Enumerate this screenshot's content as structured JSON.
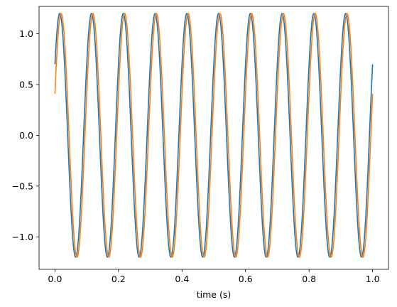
{
  "chart_data": {
    "type": "line",
    "title": "",
    "xlabel": "time (s)",
    "ylabel": "",
    "xlim": [
      -0.05,
      1.05
    ],
    "ylim": [
      -1.32,
      1.27
    ],
    "grid": false,
    "legend": "none",
    "x_ticks": [
      0.0,
      0.2,
      0.4,
      0.6,
      0.8,
      1.0
    ],
    "x_tick_labels": [
      "0.0",
      "0.2",
      "0.4",
      "0.6",
      "0.8",
      "1.0"
    ],
    "y_ticks": [
      -1.0,
      -0.5,
      0.0,
      0.5,
      1.0
    ],
    "y_tick_labels": [
      "−1.0",
      "−0.5",
      "0.0",
      "0.5",
      "1.0"
    ],
    "series": [
      {
        "color": "#1f77b4",
        "function": "1.2*sin(2*pi*10*t + 0.63)",
        "x_range": [
          0,
          1
        ],
        "y_start": 0.7,
        "y_end": 0.7
      },
      {
        "color": "#ff7f0e",
        "function": "1.2*sin(2*pi*10*t + 0.35)",
        "x_range": [
          0,
          1
        ],
        "y_start": 0.41,
        "y_end": 0.41
      }
    ]
  }
}
